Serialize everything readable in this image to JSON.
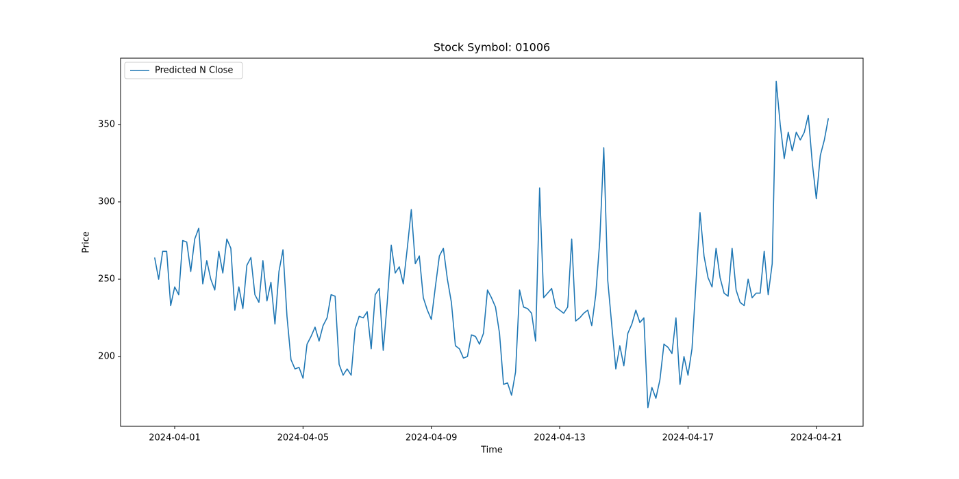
{
  "chart_data": {
    "type": "line",
    "title": "Stock Symbol: 01006",
    "xlabel": "Time",
    "ylabel": "Price",
    "x": [
      "2024-03-31 09:00",
      "2024-03-31 12:00",
      "2024-03-31 15:00",
      "2024-03-31 18:00",
      "2024-03-31 21:00",
      "2024-04-01 00:00",
      "2024-04-01 03:00",
      "2024-04-01 06:00",
      "2024-04-01 09:00",
      "2024-04-01 12:00",
      "2024-04-01 15:00",
      "2024-04-01 18:00",
      "2024-04-01 21:00",
      "2024-04-02 00:00",
      "2024-04-02 03:00",
      "2024-04-02 06:00",
      "2024-04-02 09:00",
      "2024-04-02 12:00",
      "2024-04-02 15:00",
      "2024-04-02 18:00",
      "2024-04-02 21:00",
      "2024-04-03 00:00",
      "2024-04-03 03:00",
      "2024-04-03 06:00",
      "2024-04-03 09:00",
      "2024-04-03 12:00",
      "2024-04-03 15:00",
      "2024-04-03 18:00",
      "2024-04-03 21:00",
      "2024-04-04 00:00",
      "2024-04-04 03:00",
      "2024-04-04 06:00",
      "2024-04-04 09:00",
      "2024-04-04 12:00",
      "2024-04-04 15:00",
      "2024-04-04 18:00",
      "2024-04-04 21:00",
      "2024-04-05 00:00",
      "2024-04-05 03:00",
      "2024-04-05 06:00",
      "2024-04-05 09:00",
      "2024-04-05 12:00",
      "2024-04-05 15:00",
      "2024-04-05 18:00",
      "2024-04-05 21:00",
      "2024-04-06 00:00",
      "2024-04-06 03:00",
      "2024-04-06 06:00",
      "2024-04-06 09:00",
      "2024-04-06 12:00",
      "2024-04-06 15:00",
      "2024-04-06 18:00",
      "2024-04-06 21:00",
      "2024-04-07 00:00",
      "2024-04-07 03:00",
      "2024-04-07 06:00",
      "2024-04-07 09:00",
      "2024-04-07 12:00",
      "2024-04-07 15:00",
      "2024-04-07 18:00",
      "2024-04-07 21:00",
      "2024-04-08 00:00",
      "2024-04-08 03:00",
      "2024-04-08 06:00",
      "2024-04-08 09:00",
      "2024-04-08 12:00",
      "2024-04-08 15:00",
      "2024-04-08 18:00",
      "2024-04-08 21:00",
      "2024-04-09 00:00",
      "2024-04-09 03:00",
      "2024-04-09 06:00",
      "2024-04-09 09:00",
      "2024-04-09 12:00",
      "2024-04-09 15:00",
      "2024-04-09 18:00",
      "2024-04-09 21:00",
      "2024-04-10 00:00",
      "2024-04-10 03:00",
      "2024-04-10 06:00",
      "2024-04-10 09:00",
      "2024-04-10 12:00",
      "2024-04-10 15:00",
      "2024-04-10 18:00",
      "2024-04-10 21:00",
      "2024-04-11 00:00",
      "2024-04-11 03:00",
      "2024-04-11 06:00",
      "2024-04-11 09:00",
      "2024-04-11 12:00",
      "2024-04-11 15:00",
      "2024-04-11 18:00",
      "2024-04-11 21:00",
      "2024-04-12 00:00",
      "2024-04-12 03:00",
      "2024-04-12 06:00",
      "2024-04-12 09:00",
      "2024-04-12 12:00",
      "2024-04-12 15:00",
      "2024-04-12 18:00",
      "2024-04-12 21:00",
      "2024-04-13 00:00",
      "2024-04-13 03:00",
      "2024-04-13 06:00",
      "2024-04-13 09:00",
      "2024-04-13 12:00",
      "2024-04-13 15:00",
      "2024-04-13 18:00",
      "2024-04-13 21:00",
      "2024-04-14 00:00",
      "2024-04-14 03:00",
      "2024-04-14 06:00",
      "2024-04-14 09:00",
      "2024-04-14 12:00",
      "2024-04-14 15:00",
      "2024-04-14 18:00",
      "2024-04-14 21:00",
      "2024-04-15 00:00",
      "2024-04-15 03:00",
      "2024-04-15 06:00",
      "2024-04-15 09:00",
      "2024-04-15 12:00",
      "2024-04-15 15:00",
      "2024-04-15 18:00",
      "2024-04-15 21:00",
      "2024-04-16 00:00",
      "2024-04-16 03:00",
      "2024-04-16 06:00",
      "2024-04-16 09:00",
      "2024-04-16 12:00",
      "2024-04-16 15:00",
      "2024-04-16 18:00",
      "2024-04-16 21:00",
      "2024-04-17 00:00",
      "2024-04-17 03:00",
      "2024-04-17 06:00",
      "2024-04-17 09:00",
      "2024-04-17 12:00",
      "2024-04-17 15:00",
      "2024-04-17 18:00",
      "2024-04-17 21:00",
      "2024-04-18 00:00",
      "2024-04-18 03:00",
      "2024-04-18 06:00",
      "2024-04-18 09:00",
      "2024-04-18 12:00",
      "2024-04-18 15:00",
      "2024-04-18 18:00",
      "2024-04-18 21:00",
      "2024-04-19 00:00",
      "2024-04-19 03:00",
      "2024-04-19 06:00",
      "2024-04-19 09:00",
      "2024-04-19 12:00",
      "2024-04-19 15:00",
      "2024-04-19 18:00",
      "2024-04-19 21:00",
      "2024-04-20 00:00",
      "2024-04-20 03:00",
      "2024-04-20 06:00",
      "2024-04-20 09:00",
      "2024-04-20 12:00",
      "2024-04-20 15:00",
      "2024-04-20 18:00",
      "2024-04-20 21:00",
      "2024-04-21 00:00",
      "2024-04-21 03:00",
      "2024-04-21 06:00",
      "2024-04-21 09:00"
    ],
    "series": [
      {
        "name": "Predicted N Close",
        "color": "#1f77b4",
        "values": [
          264,
          250,
          268,
          268,
          233,
          245,
          240,
          275,
          274,
          255,
          276,
          283,
          247,
          262,
          250,
          243,
          268,
          254,
          276,
          270,
          230,
          245,
          231,
          259,
          264,
          240,
          235,
          262,
          236,
          248,
          221,
          255,
          269,
          226,
          198,
          192,
          193,
          186,
          208,
          213,
          219,
          210,
          220,
          225,
          240,
          239,
          195,
          188,
          192,
          188,
          218,
          226,
          225,
          229,
          205,
          240,
          244,
          204,
          235,
          272,
          254,
          258,
          247,
          270,
          295,
          260,
          265,
          238,
          230,
          224,
          245,
          265,
          270,
          250,
          235,
          207,
          205,
          199,
          200,
          214,
          213,
          208,
          215,
          243,
          238,
          232,
          215,
          182,
          183,
          175,
          190,
          243,
          232,
          231,
          228,
          210,
          309,
          238,
          241,
          244,
          232,
          230,
          228,
          232,
          276,
          223,
          225,
          228,
          230,
          220,
          240,
          275,
          335,
          249,
          220,
          192,
          207,
          194,
          215,
          221,
          230,
          222,
          225,
          167,
          180,
          173,
          185,
          208,
          206,
          202,
          225,
          182,
          200,
          188,
          205,
          248,
          293,
          265,
          251,
          245,
          270,
          251,
          241,
          239,
          270,
          243,
          235,
          233,
          250,
          238,
          241,
          241,
          268,
          240,
          260,
          378,
          350,
          328,
          345,
          333,
          345,
          340,
          345,
          356,
          325,
          302,
          330,
          340,
          354
        ]
      }
    ],
    "xlim": [
      "2024-03-30 07:30",
      "2024-04-22 11:00"
    ],
    "xticks": [
      "2024-04-01",
      "2024-04-05",
      "2024-04-09",
      "2024-04-13",
      "2024-04-17",
      "2024-04-21"
    ],
    "ylim": [
      154.9,
      392.9
    ],
    "yticks": [
      200,
      250,
      300,
      350
    ],
    "grid": false,
    "legend": "upper left"
  }
}
